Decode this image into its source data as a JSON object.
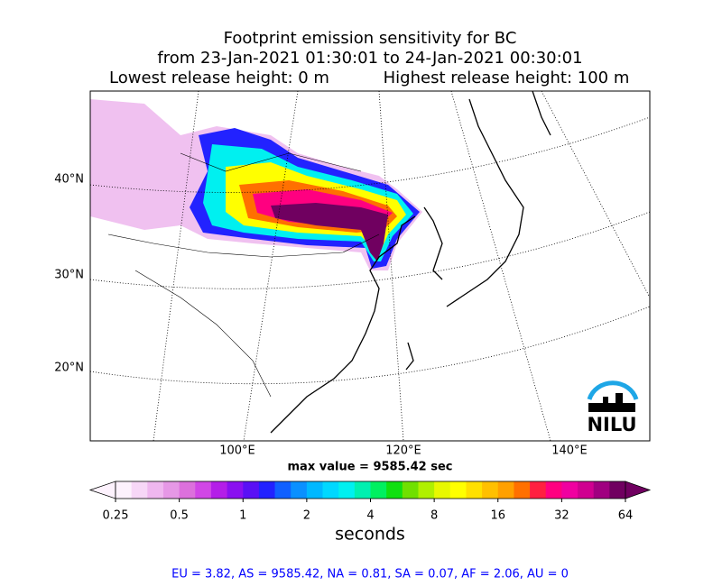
{
  "header": {
    "title_lines": [
      "Footprint emission sensitivity for BC",
      "from 23-Jan-2021 01:30:01 to 24-Jan-2021 00:30:01"
    ],
    "release": [
      "Lowest release height: 0 m",
      "Highest release height: 100 m"
    ]
  },
  "map": {
    "lat_labels": [
      "40°N",
      "30°N",
      "20°N"
    ],
    "lon_labels": [
      "100°E",
      "120°E",
      "140°E"
    ],
    "logo": "NILU",
    "max_value": "max value = 9585.42 sec"
  },
  "colorbar": {
    "log": true,
    "lim": [
      0.25,
      64
    ],
    "ticks": [
      0.25,
      0.5,
      1,
      2,
      4,
      8,
      16,
      32,
      64
    ],
    "label": "seconds",
    "colors": [
      "#fdf2fd",
      "#f7d7f7",
      "#efb7ef",
      "#e698e6",
      "#dc70dc",
      "#d146e6",
      "#b41ee8",
      "#8a10f0",
      "#5a10f5",
      "#2222ff",
      "#1060ff",
      "#0a90ff",
      "#00b8ff",
      "#00d8ff",
      "#00f0f0",
      "#00f0b0",
      "#00f060",
      "#10e010",
      "#70e000",
      "#b0f000",
      "#e8f800",
      "#ffff00",
      "#ffe000",
      "#ffc000",
      "#ffa000",
      "#ff7000",
      "#ff2040",
      "#ff0080",
      "#f000a0",
      "#d00090",
      "#a00080",
      "#700060"
    ]
  },
  "footer": "EU = 3.82,  AS = 9585.42,  NA = 0.81,  SA = 0.07,  AF = 2.06,  AU = 0"
}
